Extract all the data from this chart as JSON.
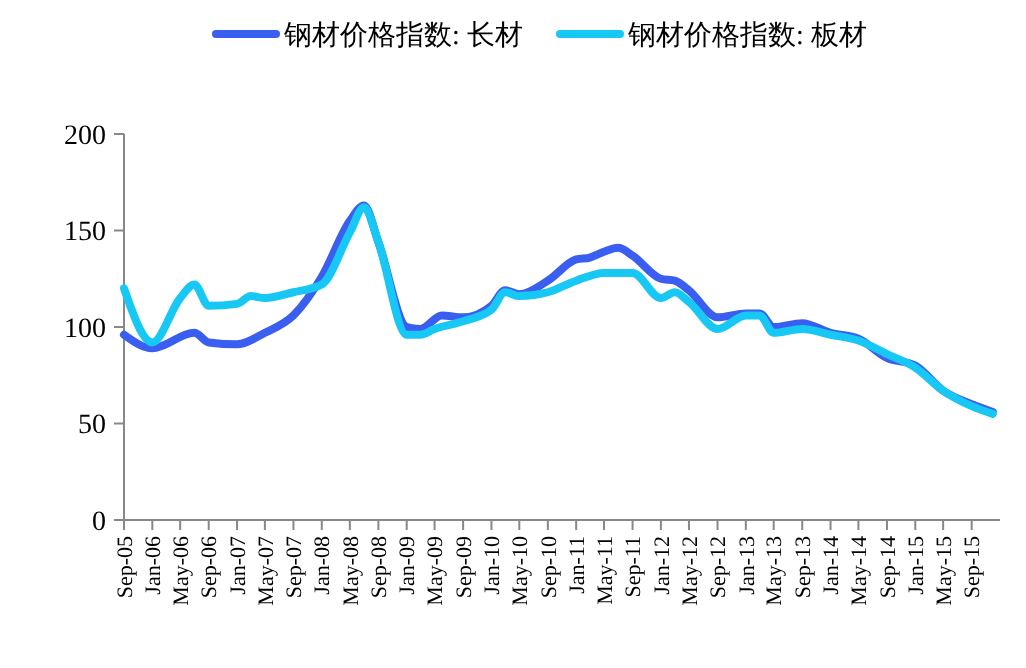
{
  "chart_data": {
    "type": "line",
    "legend": "top",
    "grid": false,
    "line_style": "solid",
    "marker": "none",
    "xlim": [
      "2005-09",
      "2016-01"
    ],
    "ylim": [
      0,
      200
    ],
    "yticks": [
      0,
      50,
      100,
      150,
      200
    ],
    "xticks": [
      {
        "value": "2005-09",
        "label": "Sep-05"
      },
      {
        "value": "2006-01",
        "label": "Jan-06"
      },
      {
        "value": "2006-05",
        "label": "May-06"
      },
      {
        "value": "2006-09",
        "label": "Sep-06"
      },
      {
        "value": "2007-01",
        "label": "Jan-07"
      },
      {
        "value": "2007-05",
        "label": "May-07"
      },
      {
        "value": "2007-09",
        "label": "Sep-07"
      },
      {
        "value": "2008-01",
        "label": "Jan-08"
      },
      {
        "value": "2008-05",
        "label": "May-08"
      },
      {
        "value": "2008-09",
        "label": "Sep-08"
      },
      {
        "value": "2009-01",
        "label": "Jan-09"
      },
      {
        "value": "2009-05",
        "label": "May-09"
      },
      {
        "value": "2009-09",
        "label": "Sep-09"
      },
      {
        "value": "2010-01",
        "label": "Jan-10"
      },
      {
        "value": "2010-05",
        "label": "May-10"
      },
      {
        "value": "2010-09",
        "label": "Sep-10"
      },
      {
        "value": "2011-01",
        "label": "Jan-11"
      },
      {
        "value": "2011-05",
        "label": "May-11"
      },
      {
        "value": "2011-09",
        "label": "Sep-11"
      },
      {
        "value": "2012-01",
        "label": "Jan-12"
      },
      {
        "value": "2012-05",
        "label": "May-12"
      },
      {
        "value": "2012-09",
        "label": "Sep-12"
      },
      {
        "value": "2013-01",
        "label": "Jan-13"
      },
      {
        "value": "2013-05",
        "label": "May-13"
      },
      {
        "value": "2013-09",
        "label": "Sep-13"
      },
      {
        "value": "2014-01",
        "label": "Jan-14"
      },
      {
        "value": "2014-05",
        "label": "May-14"
      },
      {
        "value": "2014-09",
        "label": "Sep-14"
      },
      {
        "value": "2015-01",
        "label": "Jan-15"
      },
      {
        "value": "2015-05",
        "label": "May-15"
      },
      {
        "value": "2015-09",
        "label": "Sep-15"
      }
    ],
    "series": [
      {
        "name": "钢材价格指数: 长材",
        "color": "#3a5ef0",
        "x": [
          "2005-09",
          "2006-01",
          "2006-07",
          "2006-09",
          "2007-01",
          "2007-05",
          "2007-09",
          "2008-01",
          "2008-05",
          "2008-07",
          "2008-09",
          "2009-01",
          "2009-03",
          "2009-06",
          "2009-09",
          "2010-01",
          "2010-03",
          "2010-05",
          "2010-09",
          "2011-01",
          "2011-03",
          "2011-05",
          "2011-07",
          "2011-09",
          "2012-01",
          "2012-03",
          "2012-05",
          "2012-09",
          "2013-01",
          "2013-03",
          "2013-05",
          "2013-09",
          "2014-01",
          "2014-05",
          "2014-09",
          "2015-01",
          "2015-05",
          "2015-09",
          "2015-12"
        ],
        "values": [
          96,
          89,
          97,
          92,
          91,
          97,
          106,
          126,
          155,
          163,
          144,
          100,
          99,
          106,
          105,
          111,
          119,
          117,
          124,
          135,
          136,
          139,
          141,
          137,
          125,
          124,
          119,
          105,
          107,
          107,
          100,
          102,
          97,
          94,
          84,
          80,
          67,
          60,
          56
        ]
      },
      {
        "name": "钢材价格指数: 板材",
        "color": "#17c8f5",
        "x": [
          "2005-09",
          "2006-01",
          "2006-05",
          "2006-07",
          "2006-09",
          "2007-01",
          "2007-03",
          "2007-05",
          "2007-09",
          "2008-01",
          "2008-05",
          "2008-07",
          "2008-09",
          "2009-01",
          "2009-03",
          "2009-05",
          "2009-09",
          "2010-01",
          "2010-03",
          "2010-05",
          "2010-09",
          "2011-01",
          "2011-05",
          "2011-09",
          "2012-01",
          "2012-03",
          "2012-05",
          "2012-09",
          "2013-01",
          "2013-03",
          "2013-05",
          "2013-09",
          "2014-01",
          "2014-05",
          "2014-09",
          "2015-01",
          "2015-05",
          "2015-09",
          "2015-12"
        ],
        "values": [
          120,
          92,
          115,
          122,
          111,
          112,
          116,
          115,
          118,
          122,
          149,
          162,
          144,
          96,
          96,
          99,
          103,
          109,
          118,
          116,
          118,
          124,
          128,
          128,
          115,
          118,
          113,
          99,
          106,
          106,
          97,
          99,
          96,
          93,
          86,
          79,
          67,
          59,
          55
        ]
      }
    ]
  }
}
